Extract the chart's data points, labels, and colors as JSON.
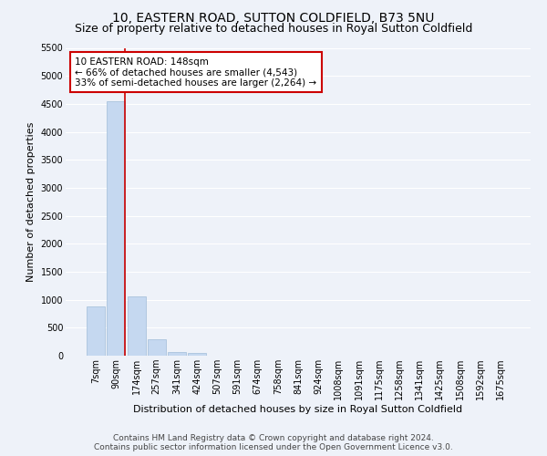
{
  "title": "10, EASTERN ROAD, SUTTON COLDFIELD, B73 5NU",
  "subtitle": "Size of property relative to detached houses in Royal Sutton Coldfield",
  "xlabel": "Distribution of detached houses by size in Royal Sutton Coldfield",
  "ylabel": "Number of detached properties",
  "footer_line1": "Contains HM Land Registry data © Crown copyright and database right 2024.",
  "footer_line2": "Contains public sector information licensed under the Open Government Licence v3.0.",
  "bar_labels": [
    "7sqm",
    "90sqm",
    "174sqm",
    "257sqm",
    "341sqm",
    "424sqm",
    "507sqm",
    "591sqm",
    "674sqm",
    "758sqm",
    "841sqm",
    "924sqm",
    "1008sqm",
    "1091sqm",
    "1175sqm",
    "1258sqm",
    "1341sqm",
    "1425sqm",
    "1508sqm",
    "1592sqm",
    "1675sqm"
  ],
  "bar_values": [
    880,
    4540,
    1060,
    295,
    70,
    50,
    0,
    0,
    0,
    0,
    0,
    0,
    0,
    0,
    0,
    0,
    0,
    0,
    0,
    0,
    0
  ],
  "bar_color": "#c5d8f0",
  "bar_edge_color": "#a0bcd8",
  "annotation_text_line1": "10 EASTERN ROAD: 148sqm",
  "annotation_text_line2": "← 66% of detached houses are smaller (4,543)",
  "annotation_text_line3": "33% of semi-detached houses are larger (2,264) →",
  "annotation_box_color": "#ffffff",
  "annotation_box_edge_color": "#cc0000",
  "red_line_color": "#cc0000",
  "ylim": [
    0,
    5500
  ],
  "yticks": [
    0,
    500,
    1000,
    1500,
    2000,
    2500,
    3000,
    3500,
    4000,
    4500,
    5000,
    5500
  ],
  "background_color": "#eef2f9",
  "grid_color": "#ffffff",
  "title_fontsize": 10,
  "subtitle_fontsize": 9,
  "axis_label_fontsize": 8,
  "tick_fontsize": 7,
  "annotation_fontsize": 7.5,
  "footer_fontsize": 6.5
}
